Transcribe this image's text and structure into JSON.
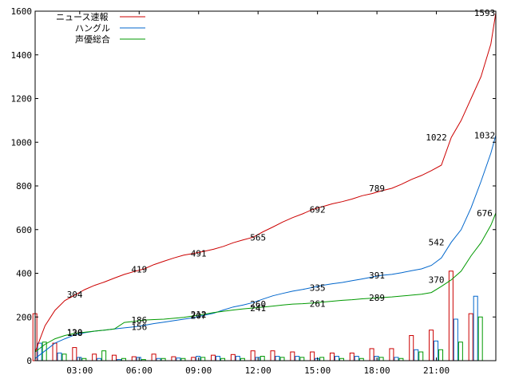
{
  "chart_data": {
    "type": "line",
    "title": "",
    "xlabel": "",
    "ylabel": "",
    "xlim": [
      "00:45",
      "24:00"
    ],
    "ylim": [
      0,
      1600
    ],
    "yticks": [
      "0",
      "200",
      "400",
      "600",
      "800",
      "1000",
      "1200",
      "1400",
      "1600"
    ],
    "xticks": [
      "03:00",
      "06:00",
      "09:00",
      "12:00",
      "15:00",
      "18:00",
      "21:00"
    ],
    "grid": false,
    "legend_position": "top-left",
    "series": [
      {
        "name": "ニュース速報",
        "color": "#cc0000",
        "x": [
          "00:45",
          "01:15",
          "01:45",
          "02:15",
          "02:45",
          "03:15",
          "03:45",
          "04:15",
          "04:45",
          "05:15",
          "05:45",
          "06:15",
          "06:45",
          "07:15",
          "07:45",
          "08:15",
          "08:45",
          "09:15",
          "09:45",
          "10:15",
          "10:45",
          "11:15",
          "11:45",
          "12:15",
          "12:45",
          "13:15",
          "13:45",
          "14:15",
          "14:45",
          "15:15",
          "15:45",
          "16:15",
          "16:45",
          "17:15",
          "17:45",
          "18:15",
          "18:45",
          "19:15",
          "19:45",
          "20:15",
          "20:45",
          "21:15",
          "21:45",
          "22:15",
          "22:45",
          "23:15",
          "23:45",
          "24:00"
        ],
        "y": [
          40,
          160,
          230,
          275,
          300,
          325,
          345,
          360,
          378,
          395,
          408,
          420,
          440,
          455,
          470,
          483,
          491,
          500,
          510,
          523,
          540,
          553,
          565,
          590,
          612,
          635,
          655,
          672,
          692,
          705,
          718,
          728,
          740,
          755,
          765,
          778,
          789,
          808,
          830,
          848,
          870,
          895,
          1022,
          1100,
          1200,
          1300,
          1450,
          1593
        ],
        "labels": [
          {
            "x": "02:45",
            "y": 304,
            "text": "304"
          },
          {
            "x": "06:00",
            "y": 419,
            "text": "419"
          },
          {
            "x": "09:00",
            "y": 491,
            "text": "491"
          },
          {
            "x": "12:00",
            "y": 565,
            "text": "565"
          },
          {
            "x": "15:00",
            "y": 692,
            "text": "692"
          },
          {
            "x": "18:00",
            "y": 789,
            "text": "789"
          },
          {
            "x": "21:00",
            "y": 1022,
            "text": "1022"
          },
          {
            "x": "23:45",
            "y": 1593,
            "text": "1593"
          }
        ]
      },
      {
        "name": "ハングル",
        "color": "#0066cc",
        "x": [
          "00:45",
          "01:15",
          "01:45",
          "02:15",
          "02:45",
          "03:15",
          "03:45",
          "04:15",
          "04:45",
          "05:15",
          "05:45",
          "06:15",
          "06:45",
          "07:15",
          "07:45",
          "08:15",
          "08:45",
          "09:15",
          "09:45",
          "10:15",
          "10:45",
          "11:15",
          "11:45",
          "12:15",
          "12:45",
          "13:15",
          "13:45",
          "14:15",
          "14:45",
          "15:15",
          "15:45",
          "16:15",
          "16:45",
          "17:15",
          "17:45",
          "18:15",
          "18:45",
          "19:15",
          "19:45",
          "20:15",
          "20:45",
          "21:15",
          "21:45",
          "22:15",
          "22:45",
          "23:15",
          "23:45",
          "24:00"
        ],
        "y": [
          10,
          45,
          80,
          100,
          118,
          128,
          135,
          140,
          145,
          150,
          155,
          162,
          170,
          176,
          183,
          190,
          197,
          207,
          217,
          232,
          246,
          255,
          266,
          282,
          297,
          308,
          318,
          326,
          335,
          345,
          352,
          358,
          366,
          374,
          383,
          391,
          395,
          403,
          412,
          420,
          436,
          470,
          542,
          600,
          700,
          820,
          950,
          1032
        ],
        "labels": [
          {
            "x": "02:45",
            "y": 128,
            "text": "128"
          },
          {
            "x": "06:00",
            "y": 156,
            "text": "156"
          },
          {
            "x": "09:00",
            "y": 207,
            "text": "207"
          },
          {
            "x": "12:00",
            "y": 260,
            "text": "260"
          },
          {
            "x": "15:00",
            "y": 335,
            "text": "335"
          },
          {
            "x": "18:00",
            "y": 391,
            "text": "391"
          },
          {
            "x": "21:00",
            "y": 542,
            "text": "542"
          },
          {
            "x": "23:45",
            "y": 1032,
            "text": "1032"
          }
        ]
      },
      {
        "name": "声優総合",
        "color": "#009900",
        "x": [
          "00:45",
          "01:15",
          "01:45",
          "02:15",
          "02:45",
          "03:15",
          "03:45",
          "04:15",
          "04:45",
          "05:15",
          "05:45",
          "06:15",
          "06:45",
          "07:15",
          "07:45",
          "08:15",
          "08:45",
          "09:15",
          "09:45",
          "10:15",
          "10:45",
          "11:15",
          "11:45",
          "12:15",
          "12:45",
          "13:15",
          "13:45",
          "14:15",
          "14:45",
          "15:15",
          "15:45",
          "16:15",
          "16:45",
          "17:15",
          "17:45",
          "18:15",
          "18:45",
          "19:15",
          "19:45",
          "20:15",
          "20:45",
          "21:15",
          "21:45",
          "22:15",
          "22:45",
          "23:15",
          "23:45",
          "24:00"
        ],
        "y": [
          40,
          75,
          100,
          115,
          125,
          130,
          135,
          140,
          145,
          175,
          180,
          186,
          188,
          190,
          194,
          198,
          205,
          212,
          220,
          226,
          232,
          237,
          241,
          245,
          250,
          255,
          259,
          261,
          264,
          268,
          272,
          276,
          279,
          283,
          286,
          289,
          292,
          296,
          300,
          304,
          312,
          340,
          370,
          410,
          480,
          540,
          620,
          676
        ],
        "labels": [
          {
            "x": "02:45",
            "y": 130,
            "text": "130"
          },
          {
            "x": "06:00",
            "y": 186,
            "text": "186"
          },
          {
            "x": "09:00",
            "y": 212,
            "text": "212"
          },
          {
            "x": "12:00",
            "y": 241,
            "text": "241"
          },
          {
            "x": "15:00",
            "y": 261,
            "text": "261"
          },
          {
            "x": "18:00",
            "y": 289,
            "text": "289"
          },
          {
            "x": "21:00",
            "y": 370,
            "text": "370"
          },
          {
            "x": "23:45",
            "y": 676,
            "text": "676"
          }
        ]
      }
    ],
    "bars": {
      "x": [
        "01:00",
        "02:00",
        "03:00",
        "04:00",
        "05:00",
        "06:00",
        "07:00",
        "08:00",
        "09:00",
        "10:00",
        "11:00",
        "12:00",
        "13:00",
        "14:00",
        "15:00",
        "16:00",
        "17:00",
        "18:00",
        "19:00",
        "20:00",
        "21:00",
        "22:00",
        "23:00"
      ],
      "ニュース速報": [
        215,
        80,
        60,
        30,
        25,
        18,
        30,
        18,
        15,
        25,
        28,
        45,
        45,
        40,
        40,
        35,
        35,
        55,
        55,
        115,
        140,
        410,
        215
      ],
      "ハングル": [
        80,
        35,
        15,
        10,
        5,
        15,
        10,
        12,
        20,
        20,
        20,
        15,
        20,
        20,
        10,
        20,
        20,
        20,
        15,
        50,
        90,
        190,
        295
      ],
      "声優総合": [
        85,
        30,
        10,
        45,
        10,
        5,
        10,
        10,
        15,
        10,
        10,
        20,
        15,
        15,
        15,
        10,
        10,
        15,
        10,
        40,
        50,
        85,
        200
      ]
    }
  }
}
